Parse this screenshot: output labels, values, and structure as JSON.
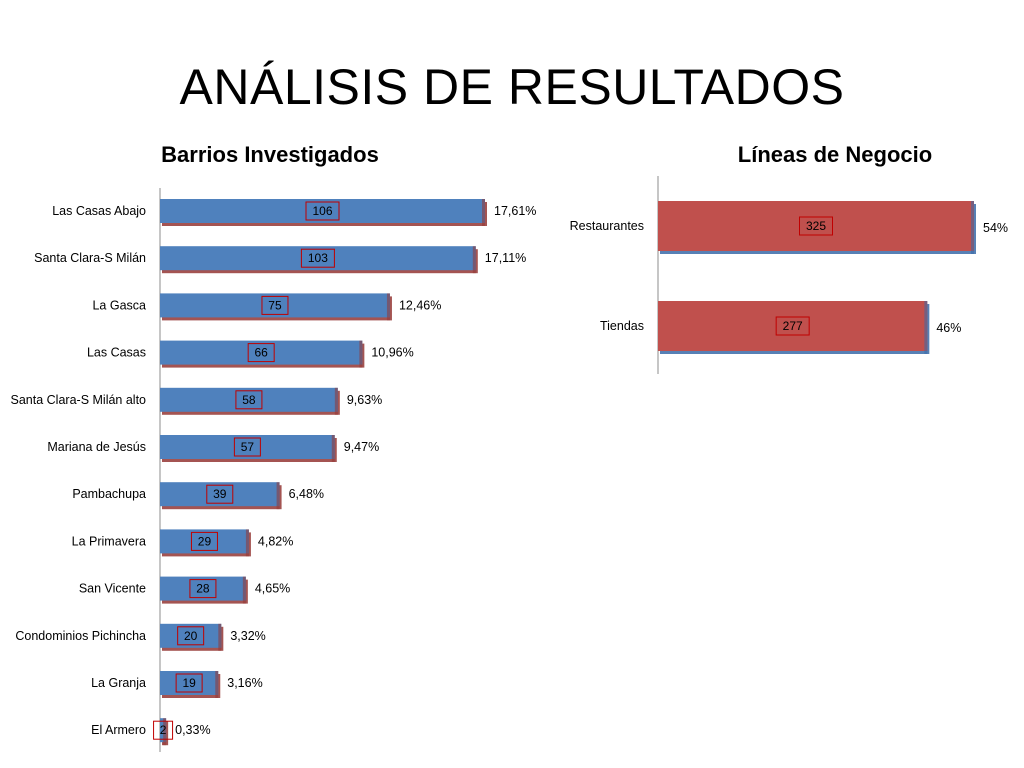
{
  "slide": {
    "title": "ANÁLISIS DE RESULTADOS"
  },
  "colors": {
    "blue_bar": "#4f81bd",
    "blue_dark": "#3a6aa8",
    "red_bar": "#c0504d",
    "red_dark": "#943634",
    "value_box_border": "#c00000",
    "axis": "#8c8c8c"
  },
  "chart_data": [
    {
      "type": "bar",
      "orientation": "horizontal",
      "title": "Barrios Investigados",
      "categories": [
        "Las Casas Abajo",
        "Santa Clara-S Milán",
        "La Gasca",
        "Las Casas",
        "Santa Clara-S Milán alto",
        "Mariana de Jesús",
        "Pambachupa",
        "La Primavera",
        "San Vicente",
        "Condominios Pichincha",
        "La Granja",
        "El Armero"
      ],
      "values": [
        106,
        103,
        75,
        66,
        58,
        57,
        39,
        29,
        28,
        20,
        19,
        2
      ],
      "percent_labels": [
        "17,61%",
        "17,11%",
        "12,46%",
        "10,96%",
        "9,63%",
        "9,47%",
        "6,48%",
        "4,82%",
        "4,65%",
        "3,32%",
        "3,16%",
        "0,33%"
      ],
      "bar_color": "#4f81bd",
      "grid": false
    },
    {
      "type": "bar",
      "orientation": "horizontal",
      "title": "Líneas de Negocio",
      "categories": [
        "Restaurantes",
        "Tiendas"
      ],
      "values": [
        325,
        277
      ],
      "percent_labels": [
        "54%",
        "46%"
      ],
      "bar_color": "#c0504d",
      "grid": false
    }
  ]
}
